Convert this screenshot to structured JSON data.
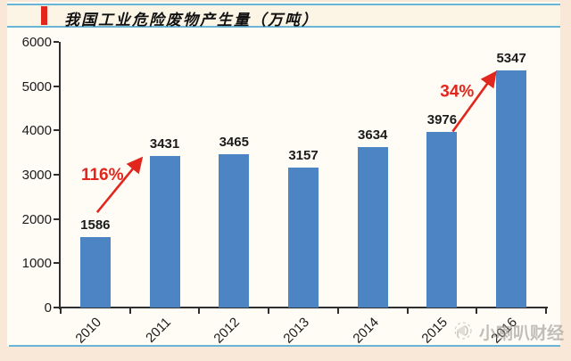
{
  "header": {
    "title": "我国工业危险废物产生量（万吨）",
    "accent_color": "#e1261d",
    "rule_color": "#6ab4d6"
  },
  "chart_data": {
    "type": "bar",
    "title": "我国工业危险废物产生量（万吨）",
    "categories": [
      "2010",
      "2011",
      "2012",
      "2013",
      "2014",
      "2015",
      "2016"
    ],
    "values": [
      1586,
      3431,
      3465,
      3157,
      3634,
      3976,
      5347
    ],
    "xlabel": "",
    "ylabel": "",
    "ylim": [
      0,
      6000
    ],
    "yticks": [
      0,
      1000,
      2000,
      3000,
      4000,
      5000,
      6000
    ],
    "grid": false,
    "legend_position": "none",
    "data_labels": true,
    "bar_color": "#4c84c4",
    "annotation_color": "#e1261d",
    "annotations": [
      {
        "text": "116%",
        "from": "2010",
        "to": "2011"
      },
      {
        "text": "34%",
        "from": "2015",
        "to": "2016"
      }
    ]
  },
  "watermark": {
    "text": "小喇叭财经",
    "icon": "trumpet-icon"
  }
}
